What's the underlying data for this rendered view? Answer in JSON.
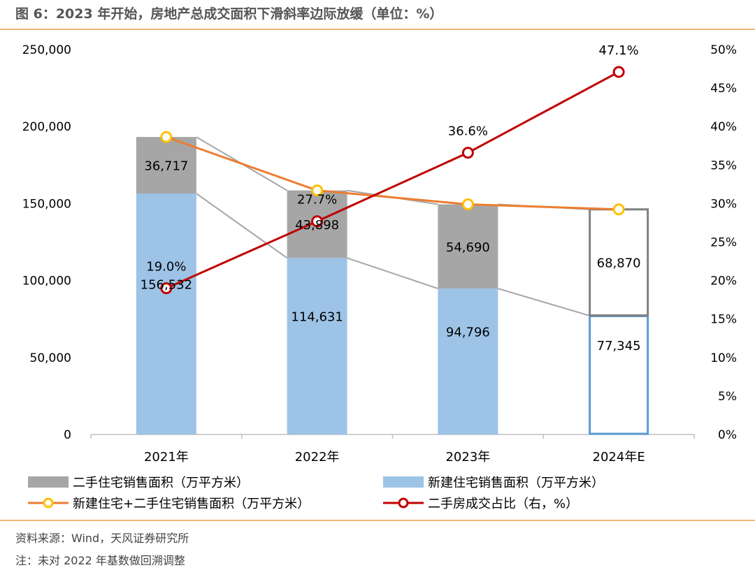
{
  "header": {
    "title": "图 6：2023 年开始，房地产总成交面积下滑斜率边际放缓（单位：%）"
  },
  "footer": {
    "source": "资料来源：Wind，天风证券研究所",
    "note": "注：未对 2022 年基数做回溯调整"
  },
  "chart_data": {
    "type": "bar",
    "title": "图 6：2023 年开始，房地产总成交面积下滑斜率边际放缓（单位：%）",
    "categories": [
      "2021年",
      "2022年",
      "2023年",
      "2024年E"
    ],
    "stacked": true,
    "ylim": [
      0,
      250000
    ],
    "yticks": [
      "0",
      "50,000",
      "100,000",
      "150,000",
      "200,000",
      "250,000"
    ],
    "y2lim": [
      0,
      50
    ],
    "y2ticks": [
      "0%",
      "5%",
      "10%",
      "15%",
      "20%",
      "25%",
      "30%",
      "35%",
      "40%",
      "45%",
      "50%"
    ],
    "grid": false,
    "legend_position": "bottom",
    "series": [
      {
        "name": "二手住宅销售面积（万平方米）",
        "type": "bar",
        "axis": "left",
        "color": "#a6a6a6",
        "values": [
          36717,
          43898,
          54690,
          68870
        ],
        "labels": [
          "36,717",
          "43,898",
          "54,690",
          "68,870"
        ]
      },
      {
        "name": "新建住宅销售面积（万平方米）",
        "type": "bar",
        "axis": "left",
        "color": "#9dc3e6",
        "values": [
          156532,
          114631,
          94796,
          77345
        ],
        "labels": [
          "156,532",
          "114,631",
          "94,796",
          "77,345"
        ]
      },
      {
        "name": "新建住宅+二手住宅销售面积（万平方米）",
        "type": "line",
        "axis": "left",
        "color": "#ed7d31",
        "marker_color": "#ffc000",
        "values": [
          193249,
          158529,
          149486,
          146215
        ]
      },
      {
        "name": "二手房成交占比（右，%）",
        "type": "line",
        "axis": "right",
        "color": "#c00000",
        "values": [
          19.0,
          27.7,
          36.6,
          47.1
        ],
        "labels": [
          "19.0%",
          "27.7%",
          "36.6%",
          "47.1%"
        ]
      }
    ],
    "forecast_category": "2024年E",
    "forecast_style": {
      "secondhand_outline": "#808080",
      "new_outline": "#5b9bd5"
    },
    "connector_color": "#a6a6a6"
  }
}
